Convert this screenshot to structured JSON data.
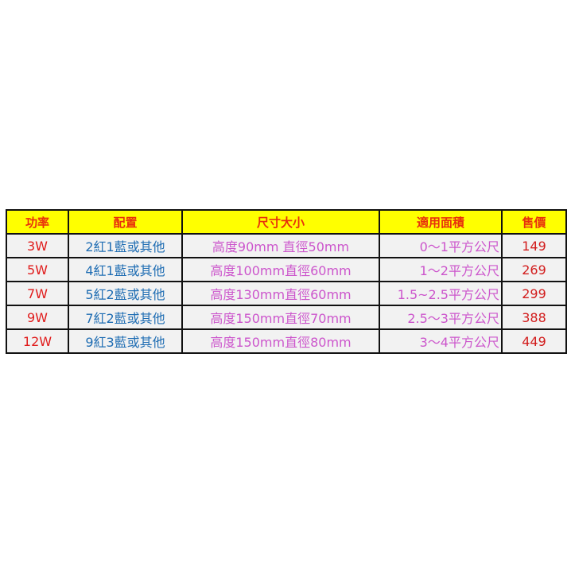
{
  "headers": [
    "功率",
    "配置",
    "尺寸大小",
    "適用面積",
    "售價"
  ],
  "rows": [
    [
      "3W",
      "2紅1藍或其他",
      "高度90mm 直徑50mm",
      "0～1平方公尺",
      "149"
    ],
    [
      "5W",
      "4紅1藍或其他",
      "高度100mm直徑60mm",
      "1～2平方公尺",
      "269"
    ],
    [
      "7W",
      "5紅2藍或其他",
      "高度130mm直徑60mm",
      "1.5~2.5平方公尺",
      "299"
    ],
    [
      "9W",
      "7紅2藍或其他",
      "高度150mm直徑70mm",
      "2.5～3平方公尺",
      "388"
    ],
    [
      "12W",
      "9紅3藍或其他",
      "高度150mm直徑80mm",
      "3～4平方公尺",
      "449"
    ]
  ],
  "colors": {
    "header_bg": "#ffff00",
    "header_text": "#e8300c",
    "power_text": "#e01b1b",
    "config_text": "#1f6db3",
    "size_text": "#cc55cc",
    "price_text": "#d21c1c"
  }
}
